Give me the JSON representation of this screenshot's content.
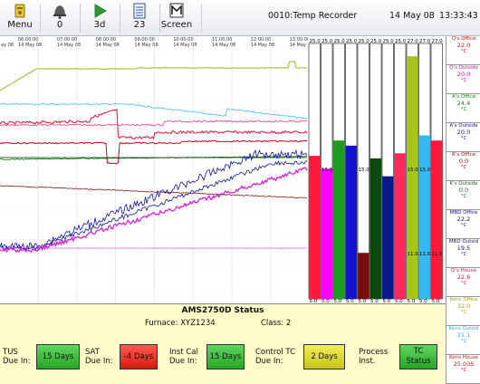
{
  "toolbar": {
    "menu_label": "Menu",
    "alarm_label": "0",
    "play_label": "3d",
    "list_label": "23",
    "screen_label": "Screen",
    "title": "0010:Temp Recorder",
    "date": "14 May 08",
    "time": "13:33:43"
  },
  "chart": {
    "time_ticks": [
      {
        "time": "06:00:00",
        "date": "14 May 08"
      },
      {
        "time": "07:00:00",
        "date": "14 May 08"
      },
      {
        "time": "08:00:00",
        "date": "14 May 08"
      },
      {
        "time": "09:00:00",
        "date": "14 May 08"
      },
      {
        "time": "10:00:00",
        "date": "14 May 08"
      },
      {
        "time": "11:00:00",
        "date": "14 May 08"
      },
      {
        "time": "12:00:00",
        "date": "14 May 08"
      },
      {
        "time": "13:00:00",
        "date": "14 May 08"
      }
    ],
    "left_edge_label": "ay 08"
  },
  "bars": [
    {
      "top": "25.0",
      "bottom": "5.0",
      "mid": "",
      "fill": 0.56,
      "color": "#ff1a3c"
    },
    {
      "top": "25.0",
      "bottom": "5.0",
      "mid": "15.0",
      "fill": 0.51,
      "color": "#ff00ff"
    },
    {
      "top": "25.0",
      "bottom": "5.0",
      "mid": "",
      "fill": 0.62,
      "color": "#1e9c1e"
    },
    {
      "top": "25.0",
      "bottom": "5.0",
      "mid": "",
      "fill": 0.6,
      "color": "#1212d0"
    },
    {
      "top": "25.0",
      "bottom": "5.0",
      "mid": "15.0",
      "fill": 0.18,
      "color": "#7a0c0c"
    },
    {
      "top": "25.0",
      "bottom": "5.0",
      "mid": "",
      "fill": 0.55,
      "color": "#0b4a0b"
    },
    {
      "top": "25.0",
      "bottom": "5.0",
      "mid": "",
      "fill": 0.48,
      "color": "#0b1a8a"
    },
    {
      "top": "25.0",
      "bottom": "5.0",
      "mid": "",
      "fill": 0.57,
      "color": "#ff2a5c"
    },
    {
      "top": "27.0",
      "bottom": "5.0",
      "mid": "15.0",
      "fill": 0.95,
      "color": "#a8c61a"
    },
    {
      "top": "27.0",
      "bottom": "5.0",
      "mid": "15.0",
      "fill": 0.64,
      "color": "#33b8f0"
    },
    {
      "top": "27.0",
      "bottom": "5.0",
      "mid": "",
      "fill": 0.62,
      "color": "#ff1a3c"
    }
  ],
  "bar_mid_values": [
    "11.0",
    "11.0",
    "11.0"
  ],
  "legend": [
    {
      "name": "Q's Office",
      "value": "22.0",
      "unit": "°C",
      "color": "#d11"
    },
    {
      "name": "Q's Outside",
      "value": "20.0",
      "unit": "°C",
      "color": "#d0d"
    },
    {
      "name": "A's Office",
      "value": "24.4",
      "unit": "°C",
      "color": "#181"
    },
    {
      "name": "A's Outside",
      "value": "20.0",
      "unit": "°C",
      "color": "#11c"
    },
    {
      "name": "R's Office",
      "value": "0.0",
      "unit": "°C",
      "color": "#811"
    },
    {
      "name": "K's Outside",
      "value": "0.0",
      "unit": "°C",
      "color": "#262"
    },
    {
      "name": "MBD Office",
      "value": "22.2",
      "unit": "°C",
      "color": "#117"
    },
    {
      "name": "MBD Outsid",
      "value": "19.5",
      "unit": "°C",
      "color": "#117"
    },
    {
      "name": "Q's House",
      "value": "22.6",
      "unit": "°C",
      "color": "#d14"
    },
    {
      "name": "Kens Office",
      "value": "32.0",
      "unit": "°C",
      "color": "#9a1"
    },
    {
      "name": "Kens Outsid",
      "value": "21.1",
      "unit": "°C",
      "color": "#3ae"
    },
    {
      "name": "Kens House",
      "value": "25.035",
      "unit": "°C",
      "color": "#d11"
    }
  ],
  "status": {
    "title": "AMS2750D Status",
    "furnace": "Furnace: XYZ1234",
    "class": "Class: 2",
    "tus_label1": "TUS",
    "tus_label2": "Due In:",
    "tus_value": "15 Days",
    "sat_label1": "SAT",
    "sat_label2": "Due In:",
    "sat_value": "-4 Days",
    "instcal_label1": "Inst Cal",
    "instcal_label2": "Due In:",
    "instcal_value": "15 Days",
    "ctrl_label1": "Control TC",
    "ctrl_label2": "Due In:",
    "ctrl_value": "2 Days",
    "proc_label1": "Process",
    "proc_label2": "Inst.",
    "tc_label1": "TC",
    "tc_label2": "Status"
  },
  "colors": {
    "toolbar_bg": "#eceef3",
    "status_bg": "#fdfcc8",
    "ok_green": "#3cbf3c",
    "alert_red": "#e0281c",
    "warn_yellow": "#e0dc33"
  }
}
